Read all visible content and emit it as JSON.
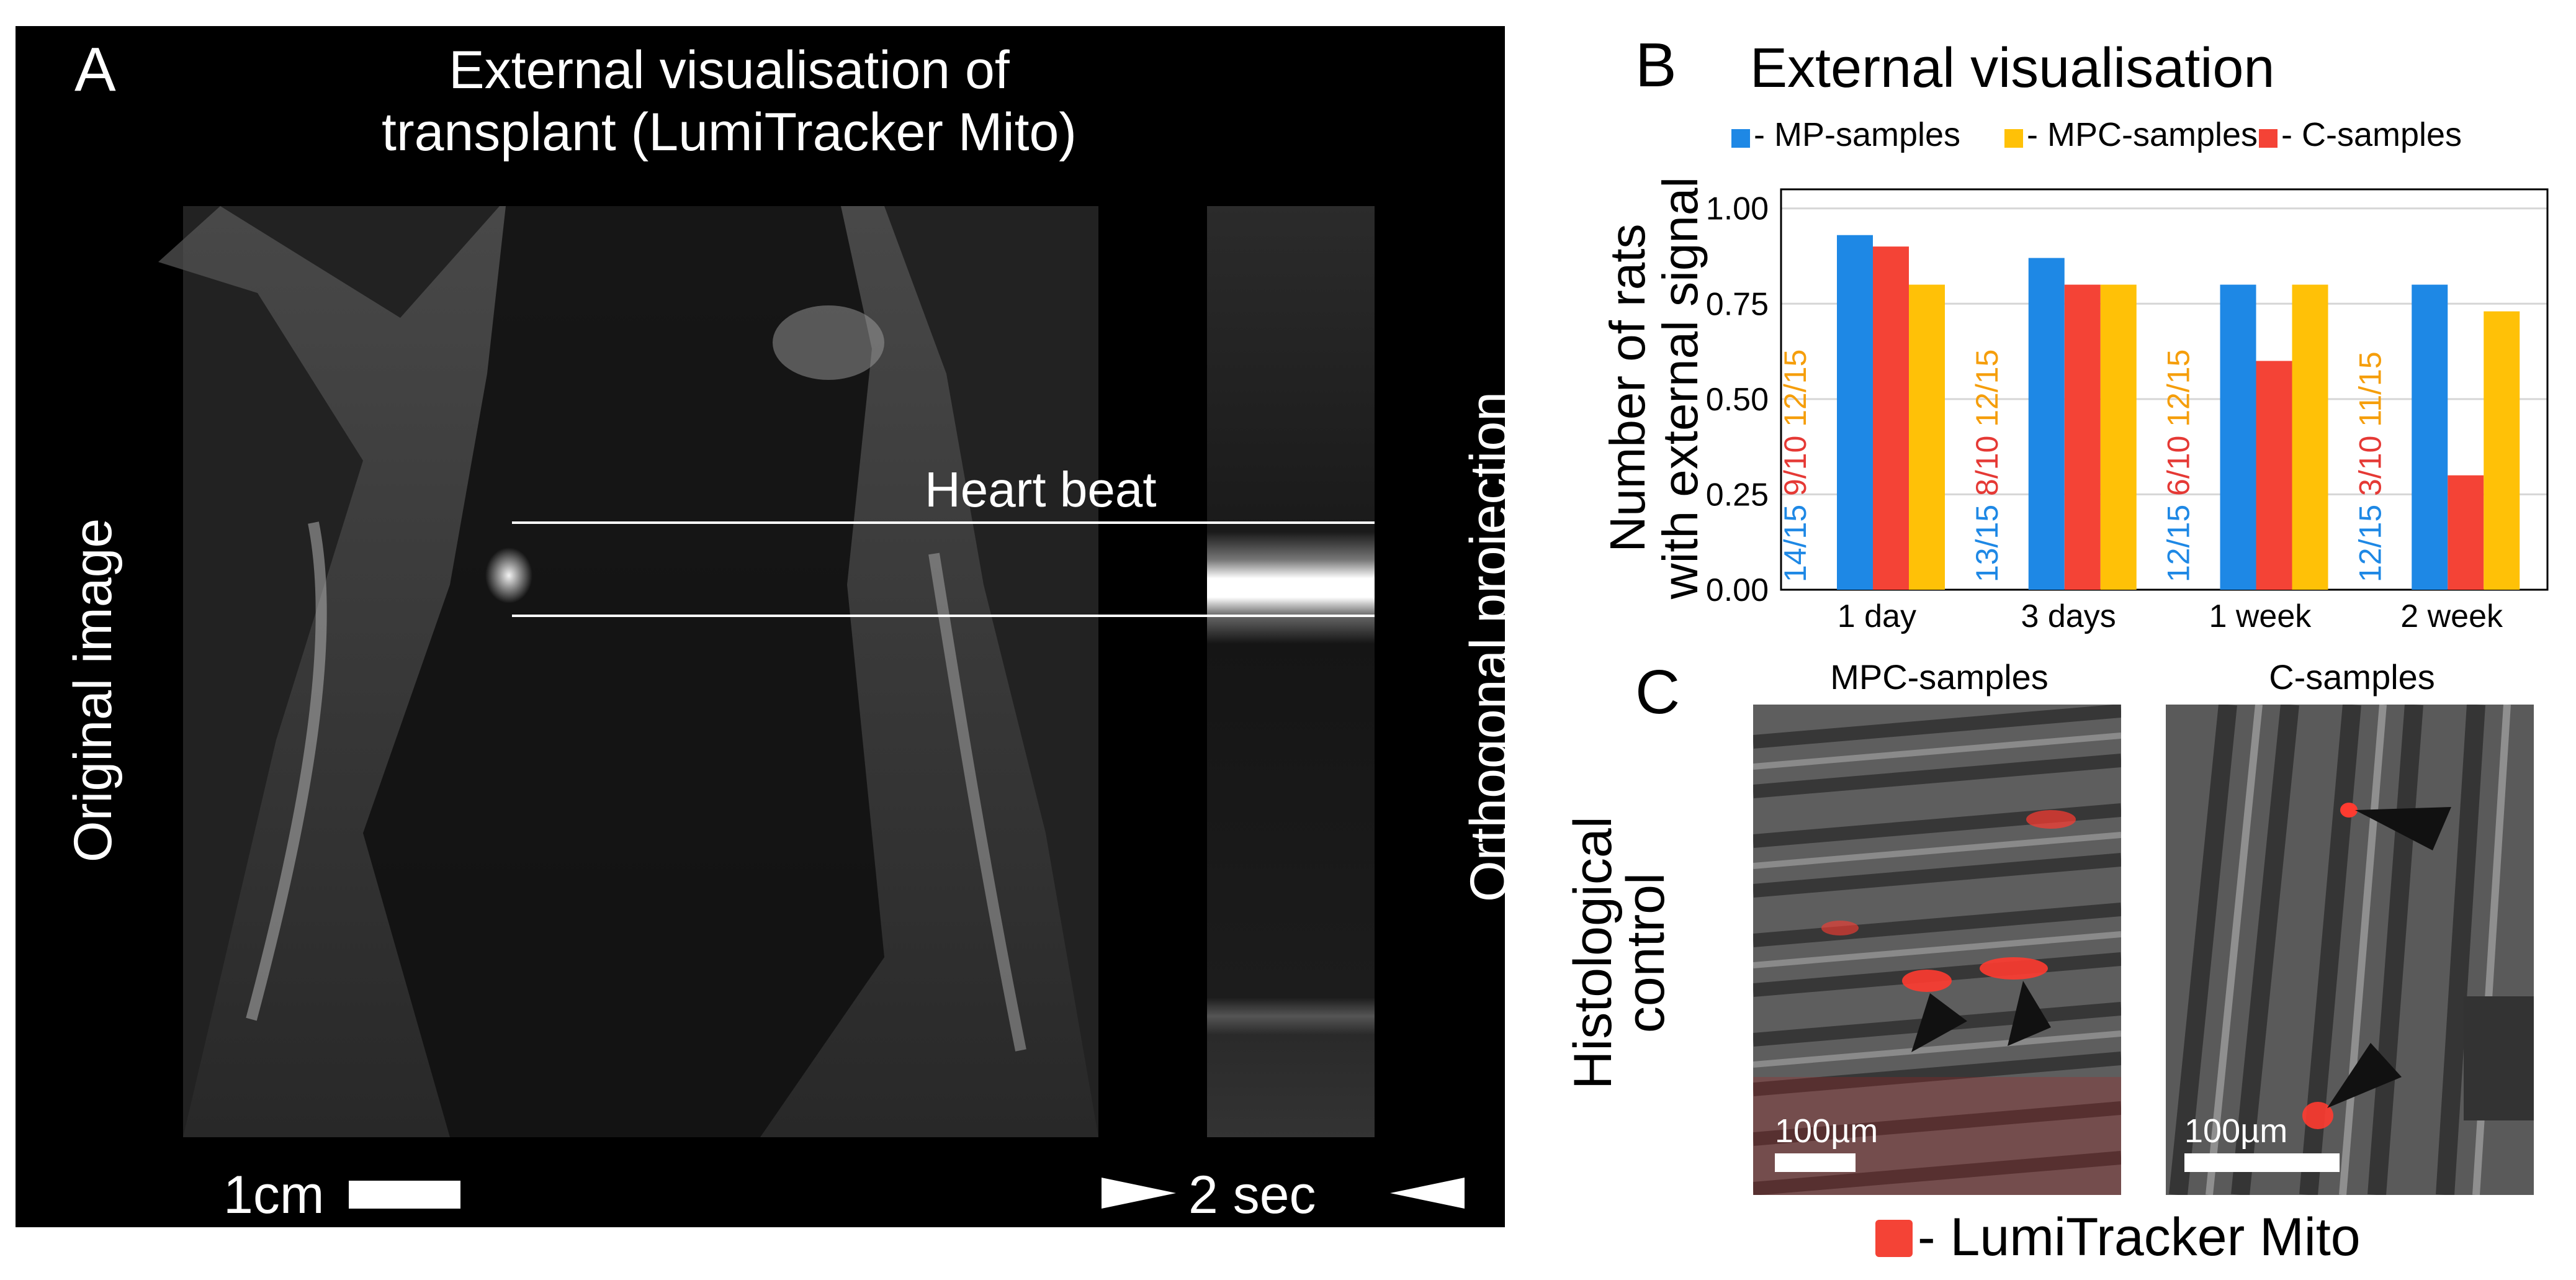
{
  "panelA": {
    "letter": "A",
    "title_line1": "External visualisation of",
    "title_line2": "transplant (LumiTracker Mito)",
    "left_label": "Original image",
    "right_label": "Orthogonal projection",
    "heart_label": "Heart beat",
    "scale_label": "1cm",
    "time_label": "2 sec"
  },
  "panelB": {
    "letter": "B"
  },
  "panelC": {
    "letter": "C",
    "side_label_line1": "Histological",
    "side_label_line2": "control",
    "left_title": "MPC-samples",
    "right_title": "C-samples",
    "scale_left": "100µm",
    "scale_right": "100µm",
    "legend_label": "- LumiTracker Mito",
    "legend_color": "#f44336"
  },
  "chart_data": {
    "type": "bar",
    "title": "External visualisation",
    "ylabel_line1": "Number of rats",
    "ylabel_line2": "with external signal",
    "xlabel": "",
    "categories": [
      "1 day",
      "3 days",
      "1 week",
      "2 week"
    ],
    "ylim": [
      0,
      1.05
    ],
    "yticks": [
      "0.00",
      "0.25",
      "0.50",
      "0.75",
      "1.00"
    ],
    "ytick_values": [
      0,
      0.25,
      0.5,
      0.75,
      1.0
    ],
    "grid": true,
    "legend_position": "top",
    "series": [
      {
        "name": "- MP-samples",
        "color": "#1e88e5",
        "values": [
          0.93,
          0.87,
          0.8,
          0.8
        ],
        "labels": [
          "14/15",
          "13/15",
          "12/15",
          "12/15"
        ]
      },
      {
        "name": "- C-samples",
        "color": "#f44336",
        "values": [
          0.9,
          0.8,
          0.6,
          0.3
        ],
        "labels": [
          "9/10",
          "8/10",
          "6/10",
          "3/10"
        ]
      },
      {
        "name": "- MPC-samples",
        "color": "#ffc107",
        "values": [
          0.8,
          0.8,
          0.8,
          0.73
        ],
        "labels": [
          "12/15",
          "12/15",
          "12/15",
          "11/15"
        ]
      }
    ],
    "legend_order": [
      0,
      2,
      1
    ],
    "label_colors": [
      "#1e88e5",
      "#e53935",
      "#f59e0b"
    ]
  }
}
